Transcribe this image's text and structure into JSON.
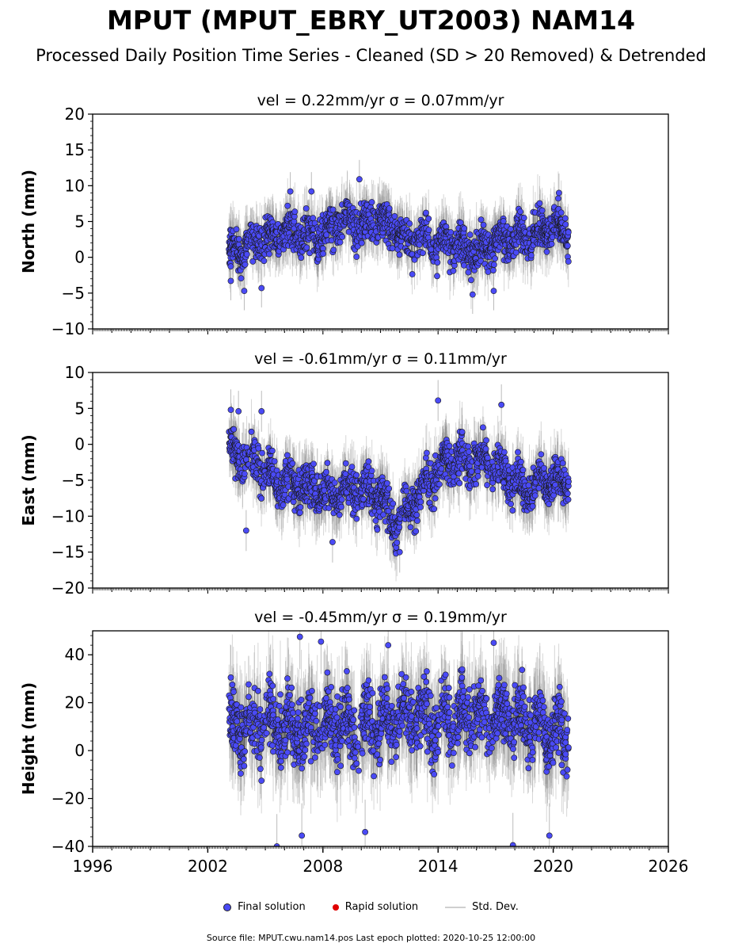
{
  "title": "MPUT (MPUT_EBRY_UT2003) NAM14",
  "subtitle": "Processed Daily Position Time Series - Cleaned (SD > 20 Removed) & Detrended",
  "legend": {
    "final": "Final solution",
    "rapid": "Rapid solution",
    "stddev": "Std. Dev."
  },
  "footer": "Source file: MPUT.cwu.nam14.pos  Last epoch plotted: 2020-10-25 12:00:00",
  "colors": {
    "final": "#4a4af5",
    "rapid": "#e00000",
    "stddev": "#bdbdbd"
  },
  "chart_data": [
    {
      "type": "scatter",
      "title": "vel = 0.22mm/yr   σ = 0.07mm/yr",
      "ylabel": "North (mm)",
      "xlim": [
        1996,
        2026
      ],
      "ylim": [
        -10,
        20
      ],
      "yticks": [
        -10,
        -5,
        0,
        5,
        10,
        15,
        20
      ],
      "ytick_labels": [
        "−10",
        "−5",
        "0",
        "5",
        "10",
        "15",
        "20"
      ],
      "x_range": [
        2003.1,
        2020.8
      ],
      "series": [
        {
          "name": "Final solution",
          "x": [
            2003.2,
            2004.0,
            2005.0,
            2006.0,
            2007.0,
            2008.0,
            2009.0,
            2010.0,
            2011.0,
            2012.0,
            2013.0,
            2014.0,
            2015.0,
            2016.0,
            2017.0,
            2018.0,
            2019.0,
            2020.0,
            2020.8
          ],
          "y": [
            0.5,
            1.5,
            3.0,
            3.5,
            3.0,
            3.5,
            5.0,
            4.5,
            5.5,
            3.0,
            2.5,
            2.0,
            1.5,
            0.5,
            2.5,
            3.0,
            3.0,
            4.5,
            3.5
          ]
        }
      ],
      "scatter_sd": 1.8,
      "outliers": [
        [
          2003.2,
          -3.3
        ],
        [
          2003.9,
          -4.7
        ],
        [
          2004.8,
          -4.3
        ],
        [
          2006.3,
          9.2
        ],
        [
          2007.4,
          9.2
        ],
        [
          2009.9,
          10.9
        ],
        [
          2015.8,
          -5.2
        ],
        [
          2016.9,
          -4.7
        ],
        [
          2020.3,
          9.0
        ]
      ]
    },
    {
      "type": "scatter",
      "title": "vel = -0.61mm/yr   σ = 0.11mm/yr",
      "ylabel": "East (mm)",
      "xlim": [
        1996,
        2026
      ],
      "ylim": [
        -20,
        10
      ],
      "yticks": [
        -20,
        -15,
        -10,
        -5,
        0,
        5,
        10
      ],
      "ytick_labels": [
        "−20",
        "−15",
        "−10",
        "−5",
        "0",
        "5",
        "10"
      ],
      "x_range": [
        2003.1,
        2020.8
      ],
      "series": [
        {
          "name": "Final solution",
          "x": [
            2003.2,
            2004.0,
            2005.0,
            2006.0,
            2007.0,
            2008.0,
            2009.0,
            2010.0,
            2011.0,
            2011.8,
            2012.5,
            2013.5,
            2014.5,
            2015.5,
            2016.5,
            2017.5,
            2018.5,
            2019.5,
            2020.8
          ],
          "y": [
            -1.0,
            -2.0,
            -4.0,
            -5.5,
            -6.0,
            -6.5,
            -6.5,
            -6.0,
            -7.0,
            -11.5,
            -8.5,
            -5.0,
            -2.0,
            -2.5,
            -2.0,
            -4.0,
            -6.5,
            -5.0,
            -5.0
          ]
        }
      ],
      "scatter_sd": 1.9,
      "outliers": [
        [
          2003.2,
          4.8
        ],
        [
          2004.0,
          -12.0
        ],
        [
          2008.5,
          -13.6
        ],
        [
          2012.0,
          -15.0
        ],
        [
          2014.0,
          6.1
        ],
        [
          2017.3,
          5.5
        ],
        [
          2003.6,
          4.6
        ],
        [
          2004.8,
          4.6
        ]
      ]
    },
    {
      "type": "scatter",
      "title": "vel = -0.45mm/yr   σ = 0.19mm/yr",
      "ylabel": "Height (mm)",
      "xlim": [
        1996,
        2026
      ],
      "ylim": [
        -40,
        50
      ],
      "yticks": [
        -40,
        -20,
        0,
        20,
        40
      ],
      "ytick_labels": [
        "−40",
        "−20",
        "0",
        "20",
        "40"
      ],
      "xticks": [
        1996,
        2002,
        2008,
        2014,
        2020,
        2026
      ],
      "xtick_labels": [
        "1996",
        "2002",
        "2008",
        "2014",
        "2020",
        "2026"
      ],
      "x_range": [
        2003.1,
        2020.8
      ],
      "series": [
        {
          "name": "Final solution",
          "x": [
            2003.2,
            2004.0,
            2005.0,
            2006.0,
            2007.0,
            2008.0,
            2009.0,
            2010.0,
            2011.0,
            2012.0,
            2013.0,
            2014.0,
            2015.0,
            2016.0,
            2017.0,
            2018.0,
            2019.0,
            2020.0,
            2020.8
          ],
          "y": [
            10,
            8,
            12,
            10,
            9,
            10,
            11,
            10,
            11,
            15,
            14,
            13,
            14,
            16,
            15,
            13,
            12,
            8,
            5
          ]
        }
      ],
      "scatter_sd": 9.0,
      "outliers": [
        [
          2003.2,
          30.5
        ],
        [
          2006.8,
          47.5
        ],
        [
          2007.9,
          45.5
        ],
        [
          2011.4,
          44.0
        ],
        [
          2016.9,
          45.0
        ],
        [
          2017.9,
          -39.5
        ],
        [
          2005.6,
          -40.0
        ],
        [
          2010.2,
          -34.0
        ],
        [
          2019.8,
          -35.5
        ],
        [
          2006.9,
          -35.5
        ]
      ]
    }
  ]
}
